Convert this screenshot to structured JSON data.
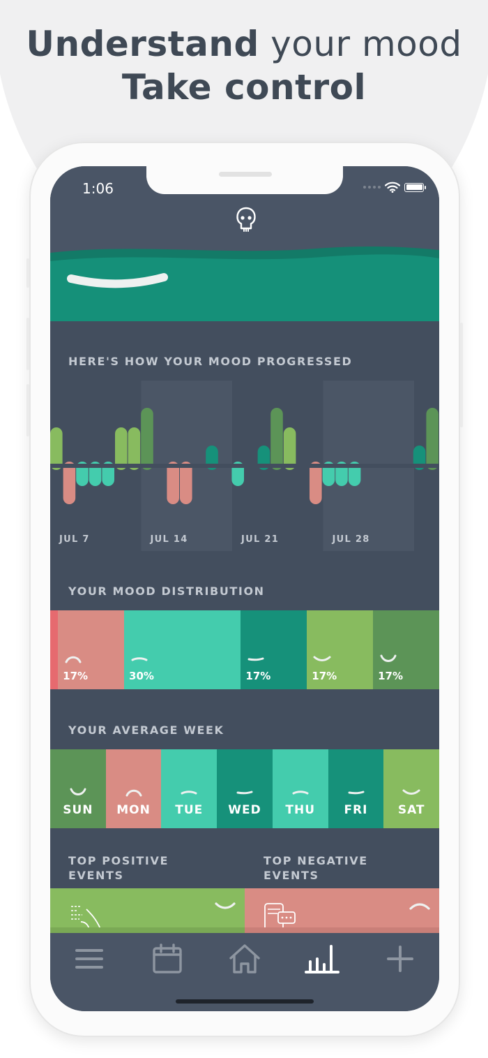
{
  "headline": {
    "line1_bold": "Understand",
    "line1_rest": " your mood",
    "line2": "Take control"
  },
  "status": {
    "time": "1:06"
  },
  "icons": {
    "app_logo": "skull-face-icon",
    "wifi": "wifi-icon",
    "battery": "battery-icon",
    "signal": "signal-icon"
  },
  "sections": {
    "progress_title": "HERE'S HOW YOUR MOOD PROGRESSED",
    "distribution_title": "YOUR MOOD DISTRIBUTION",
    "week_title": "YOUR AVERAGE WEEK",
    "positive_title_1": "TOP POSITIVE",
    "positive_title_2": "EVENTS",
    "negative_title_1": "TOP NEGATIVE",
    "negative_title_2": "EVENTS"
  },
  "colors": {
    "awful": "#e66a6f",
    "bad": "#d98c84",
    "meh": "#44ccad",
    "okay": "#16917a",
    "good": "#88bb5f",
    "great": "#5c9457",
    "bg": "#434e5e",
    "header": "#4a5566"
  },
  "chart_data": {
    "type": "bar",
    "week_labels": [
      "JUL 7",
      "JUL 14",
      "JUL 21",
      "JUL 28"
    ],
    "days": [
      3,
      -2,
      -1,
      -1,
      -1,
      3,
      3,
      4,
      null,
      -2,
      -2,
      null,
      1,
      null,
      -1,
      null,
      1,
      4,
      3,
      null,
      -2,
      -1,
      -1,
      -1,
      null,
      null,
      null,
      null,
      1,
      4,
      4,
      null,
      -3,
      -1,
      null,
      1,
      null,
      -2,
      -1,
      null,
      1,
      4,
      3
    ],
    "scale": "mood level: 4=great, 3=good, 1=okay, -1=meh, -2=bad, -3=awful"
  },
  "distribution": [
    {
      "mood": "awful",
      "share": 2,
      "label": ""
    },
    {
      "mood": "bad",
      "share": 17,
      "label": "17%"
    },
    {
      "mood": "meh",
      "share": 30,
      "label": "30%"
    },
    {
      "mood": "okay",
      "share": 17,
      "label": "17%"
    },
    {
      "mood": "good",
      "share": 17,
      "label": "17%"
    },
    {
      "mood": "great",
      "share": 17,
      "label": "17%"
    }
  ],
  "week": [
    {
      "label": "SUN",
      "mood": "great"
    },
    {
      "label": "MON",
      "mood": "bad"
    },
    {
      "label": "TUE",
      "mood": "meh"
    },
    {
      "label": "WED",
      "mood": "okay"
    },
    {
      "label": "THU",
      "mood": "meh"
    },
    {
      "label": "FRI",
      "mood": "okay"
    },
    {
      "label": "SAT",
      "mood": "good"
    }
  ],
  "nav": [
    {
      "name": "menu",
      "icon": "menu-icon"
    },
    {
      "name": "calendar",
      "icon": "calendar-icon"
    },
    {
      "name": "home",
      "icon": "home-icon"
    },
    {
      "name": "stats",
      "icon": "bar-chart-icon",
      "active": true
    },
    {
      "name": "add",
      "icon": "plus-icon"
    }
  ]
}
